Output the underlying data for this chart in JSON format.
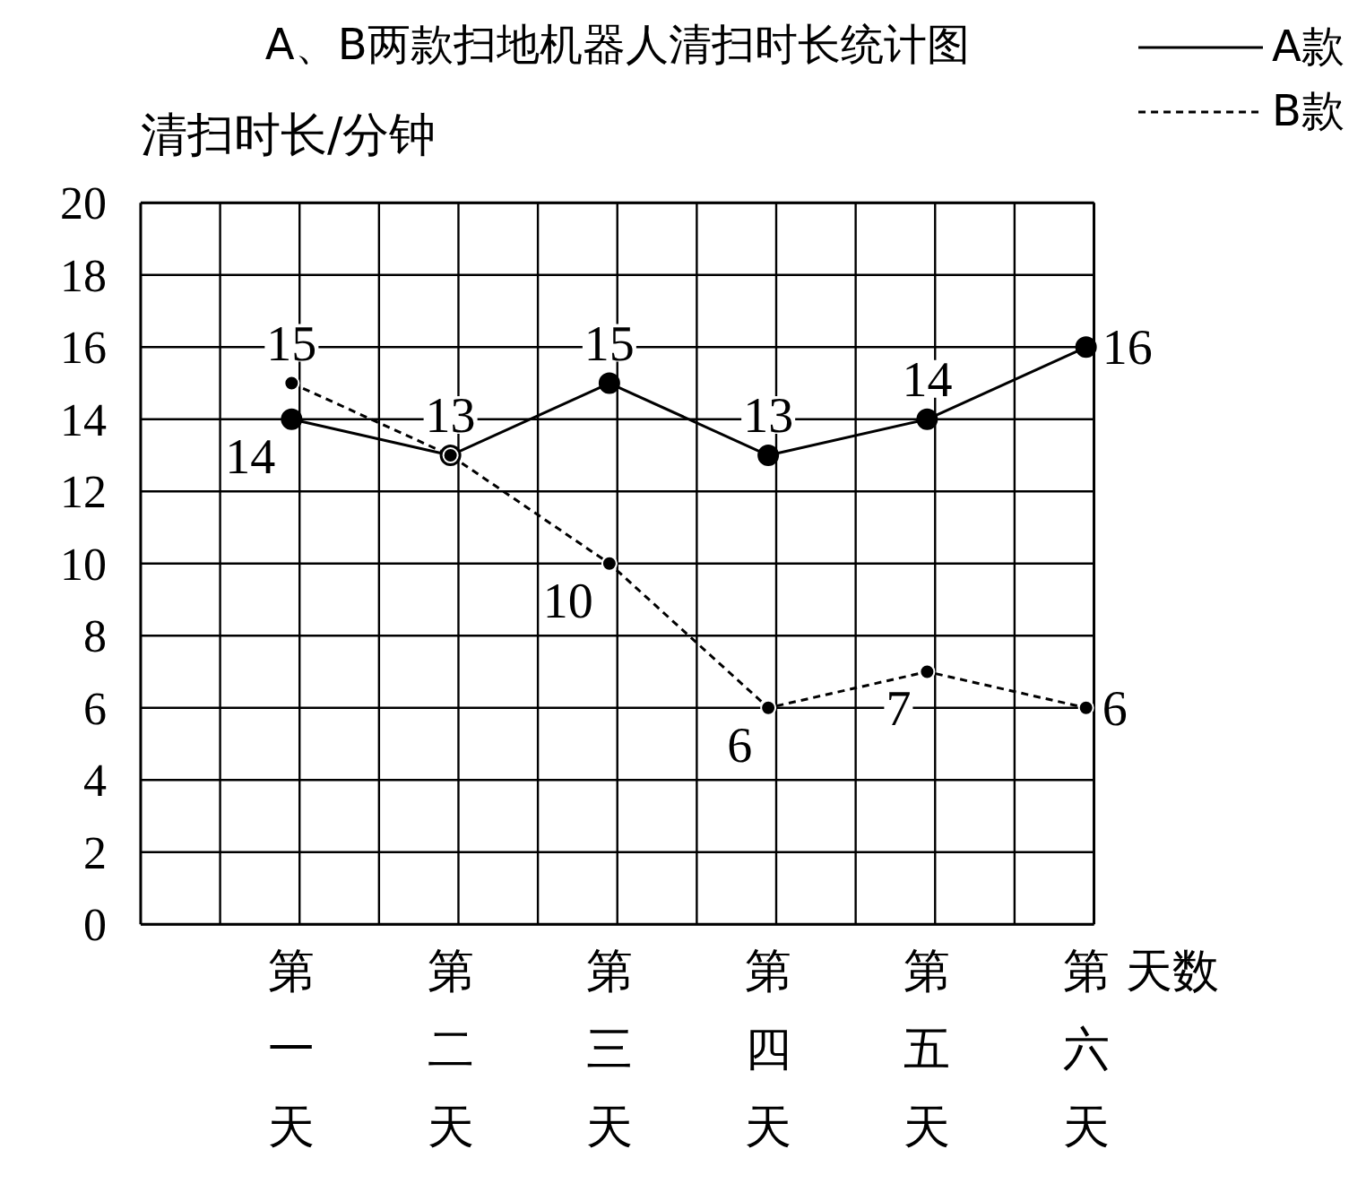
{
  "chart_data": {
    "type": "line",
    "title": "A、B两款扫地机器人清扫时长统计图",
    "ylabel": "清扫时长/分钟",
    "xlabel": "天数",
    "categories": [
      "第一天",
      "第二天",
      "第三天",
      "第四天",
      "第五天",
      "第六天"
    ],
    "series": [
      {
        "name": "A款",
        "color": "#000000",
        "line_style": "solid",
        "values": [
          14,
          13,
          15,
          13,
          14,
          16
        ],
        "value_labels": [
          "14",
          "13",
          "15",
          "13",
          "14",
          "16"
        ]
      },
      {
        "name": "B款",
        "color": "#000000",
        "line_style": "dashed",
        "values": [
          15,
          13,
          10,
          6,
          7,
          6
        ],
        "value_labels": [
          "15",
          null,
          "10",
          "6",
          "7",
          "6"
        ]
      }
    ],
    "ylim": [
      0,
      20
    ],
    "yticks": [
      0,
      2,
      4,
      6,
      8,
      10,
      12,
      14,
      16,
      18,
      20
    ],
    "grid": true,
    "legend": "top right",
    "marker": "circle"
  }
}
